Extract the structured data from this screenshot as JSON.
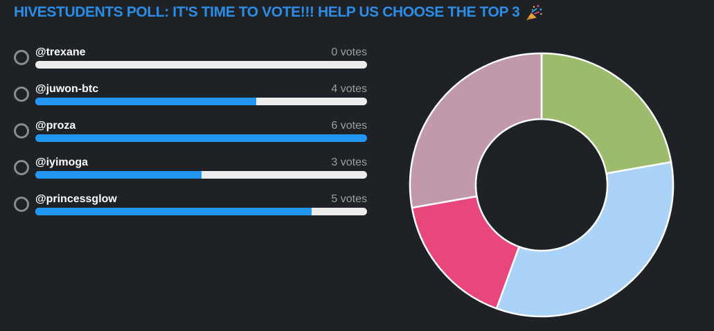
{
  "page": {
    "background": "#1e2226"
  },
  "poll": {
    "title": "HIVESTUDENTS POLL: IT'S TIME TO VOTE!!! HELP US CHOOSE THE TOP 3",
    "title_emoji": "🎉",
    "options": [
      {
        "label": "@trexane",
        "votes": 0,
        "votes_label": "0 votes"
      },
      {
        "label": "@juwon-btc",
        "votes": 4,
        "votes_label": "4 votes"
      },
      {
        "label": "@proza",
        "votes": 6,
        "votes_label": "6 votes"
      },
      {
        "label": "@iyimoga",
        "votes": 3,
        "votes_label": "3 votes"
      },
      {
        "label": "@princessglow",
        "votes": 5,
        "votes_label": "5 votes"
      }
    ]
  },
  "colors": {
    "background": "#1e2226",
    "title_blue": "#2b8de6",
    "bar_fill_blue": "#2196f3",
    "bar_track": "#ececec",
    "option_text": "#ffffff",
    "vote_count_text": "#9e9e9e",
    "radio_border": "#8c8c8c",
    "donut_stroke": "#ffffff"
  },
  "chart_data": {
    "type": "pie",
    "subtype": "donut",
    "title": "",
    "legend": "none",
    "start_angle_deg": 0,
    "clockwise": true,
    "inner_radius_ratio": 0.5,
    "outer_radius_px": 190,
    "total_votes": 18,
    "segments": [
      {
        "label": "@trexane",
        "votes": 0,
        "fraction": 0,
        "angle_deg": 0,
        "color": null
      },
      {
        "label": "@juwon-btc",
        "votes": 4,
        "fraction": 0.2222,
        "angle_deg": 80,
        "color": "#9dbb6c"
      },
      {
        "label": "@proza",
        "votes": 6,
        "fraction": 0.3333,
        "angle_deg": 120,
        "color": "#abd3f7"
      },
      {
        "label": "@iyimoga",
        "votes": 3,
        "fraction": 0.1667,
        "angle_deg": 60,
        "color": "#e8477c"
      },
      {
        "label": "@princessglow",
        "votes": 5,
        "fraction": 0.2778,
        "angle_deg": 100,
        "color": "#c298ab"
      }
    ]
  }
}
